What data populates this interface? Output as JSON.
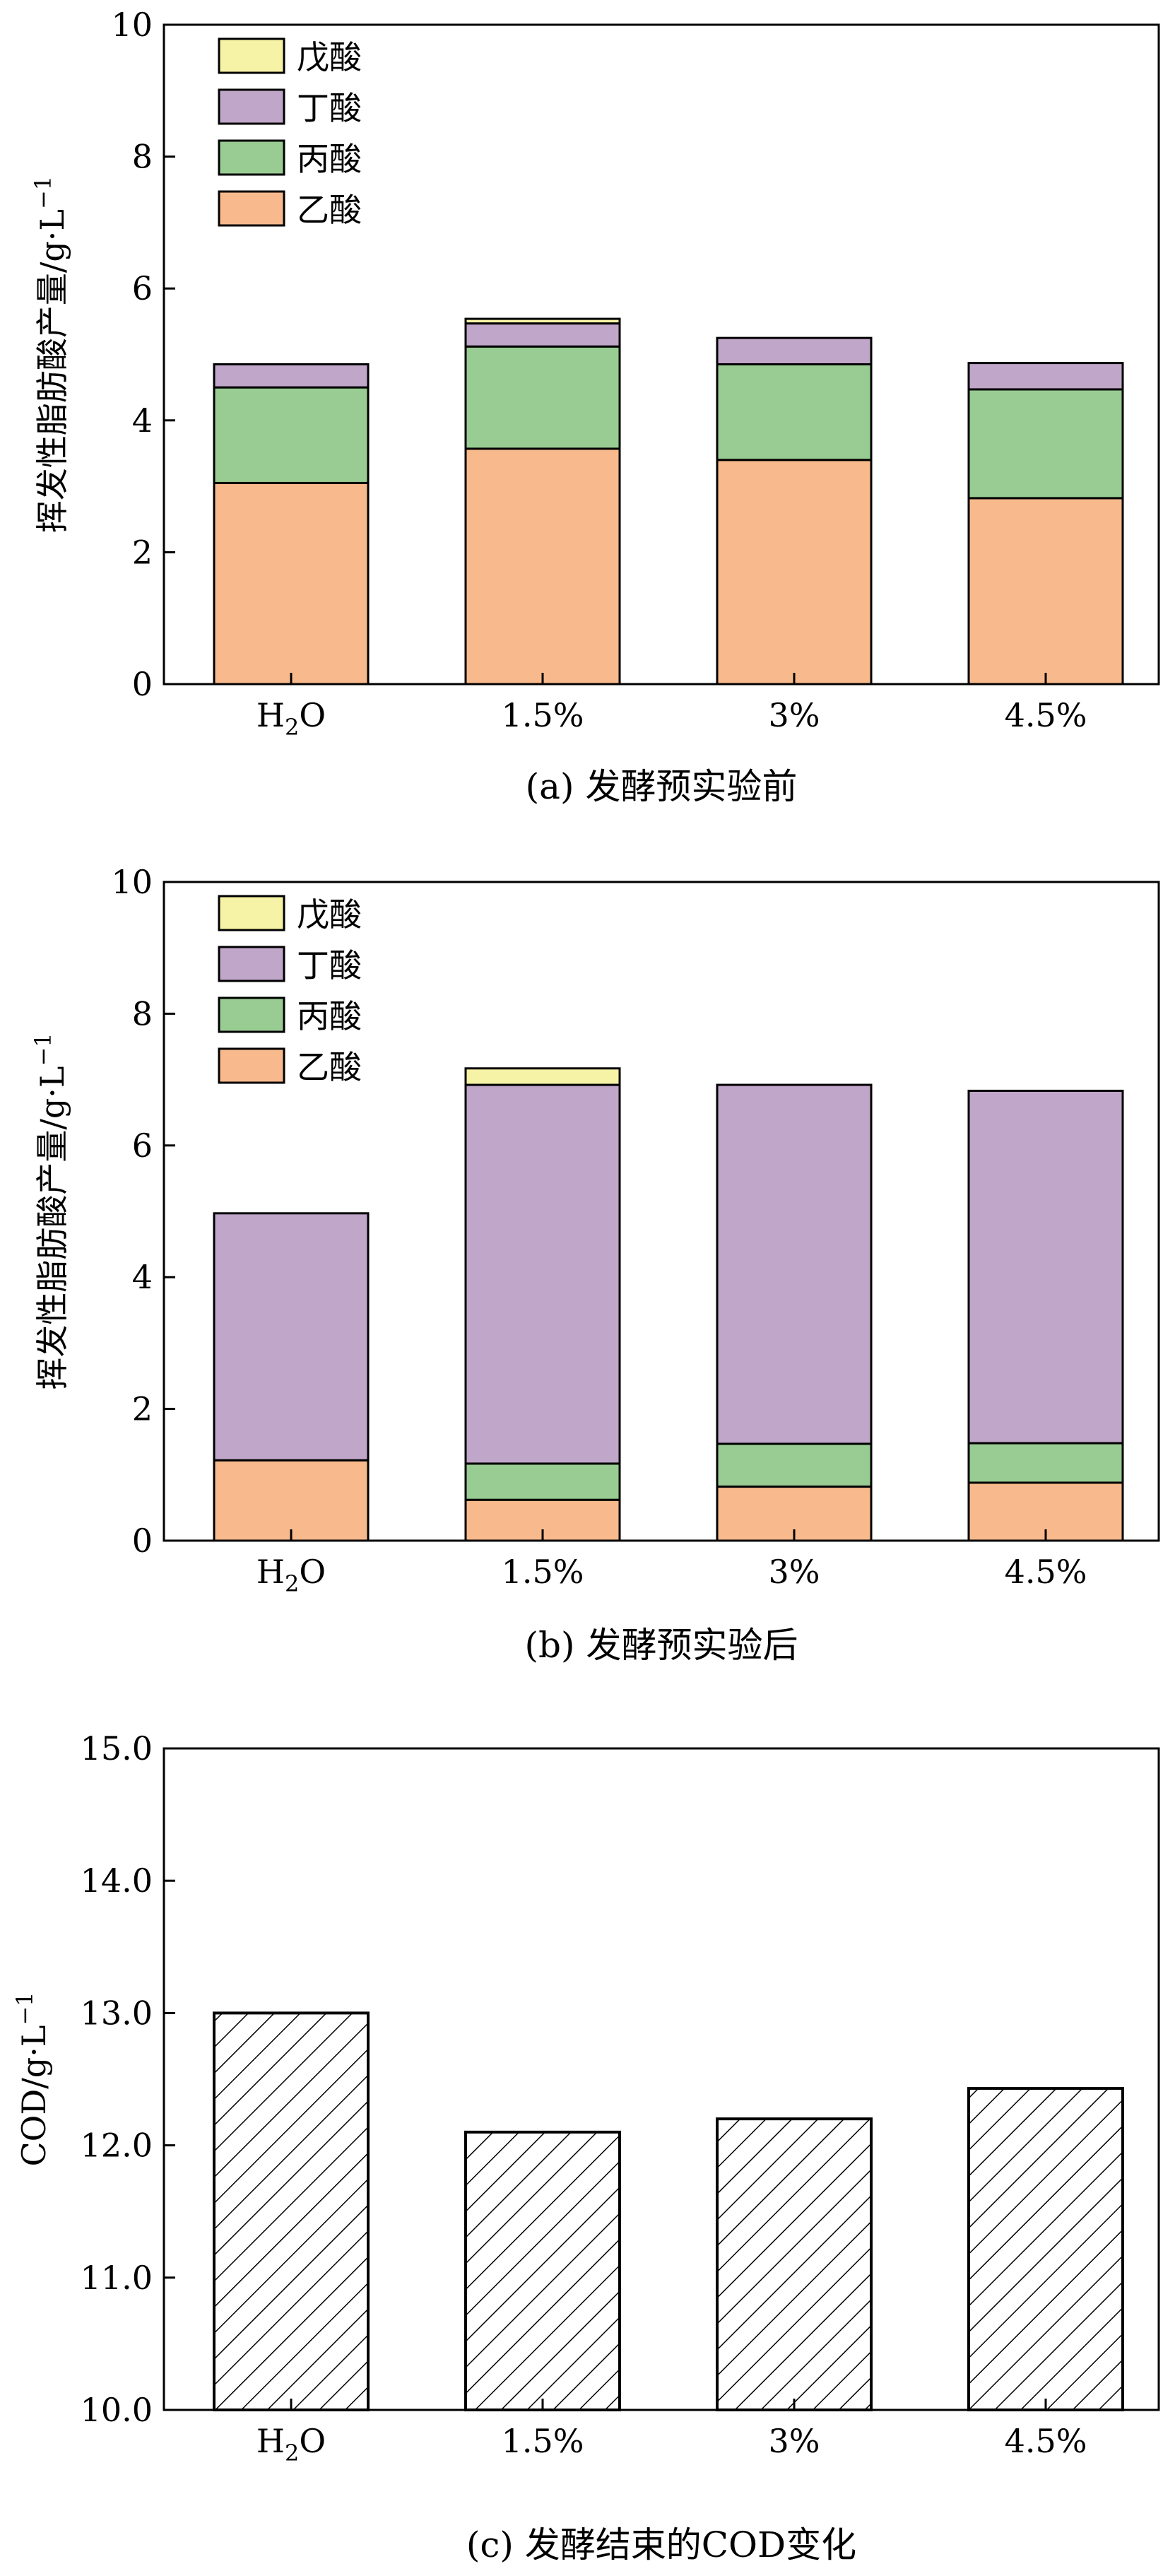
{
  "chart_data": [
    {
      "type": "bar",
      "stacked": true,
      "caption": "(a) 发酵预实验前",
      "ylabel": "挥发性脂肪酸产量/g·L",
      "ylabel_sup": "−1",
      "xlabel": "",
      "ylim": [
        0,
        10
      ],
      "yticks": [
        "0",
        "2",
        "4",
        "6",
        "8",
        "10"
      ],
      "categories": [
        "H2O",
        "1.5%",
        "3%",
        "4.5%"
      ],
      "legend_position": "top-left",
      "series": [
        {
          "name": "乙酸",
          "color": "#F8BA8C",
          "values": [
            3.05,
            3.57,
            3.4,
            2.82
          ]
        },
        {
          "name": "丙酸",
          "color": "#98CC92",
          "values": [
            1.45,
            1.55,
            1.45,
            1.65
          ]
        },
        {
          "name": "丁酸",
          "color": "#C0A6C8",
          "values": [
            0.35,
            0.35,
            0.4,
            0.4
          ]
        },
        {
          "name": "戊酸",
          "color": "#F7F3A6",
          "values": [
            0.0,
            0.07,
            0.0,
            0.0
          ]
        }
      ]
    },
    {
      "type": "bar",
      "stacked": true,
      "caption": "(b) 发酵预实验后",
      "ylabel": "挥发性脂肪酸产量/g·L",
      "ylabel_sup": "−1",
      "xlabel": "",
      "ylim": [
        0,
        10
      ],
      "yticks": [
        "0",
        "2",
        "4",
        "6",
        "8",
        "10"
      ],
      "categories": [
        "H2O",
        "1.5%",
        "3%",
        "4.5%"
      ],
      "legend_position": "top-left",
      "series": [
        {
          "name": "乙酸",
          "color": "#F8BA8C",
          "values": [
            1.22,
            0.62,
            0.82,
            0.88
          ]
        },
        {
          "name": "丙酸",
          "color": "#98CC92",
          "values": [
            0.0,
            0.55,
            0.65,
            0.6
          ]
        },
        {
          "name": "丁酸",
          "color": "#C0A6C8",
          "values": [
            3.75,
            5.75,
            5.45,
            5.35
          ]
        },
        {
          "name": "戊酸",
          "color": "#F7F3A6",
          "values": [
            0.0,
            0.25,
            0.0,
            0.0
          ]
        }
      ]
    },
    {
      "type": "bar",
      "hatched": true,
      "caption": "(c) 发酵结束的COD变化",
      "ylabel": "COD/g·L",
      "ylabel_sup": "−1",
      "xlabel": "",
      "ylim": [
        10,
        15
      ],
      "yticks": [
        "10.0",
        "11.0",
        "12.0",
        "13.0",
        "14.0",
        "15.0"
      ],
      "categories": [
        "H2O",
        "1.5%",
        "3%",
        "4.5%"
      ],
      "series": [
        {
          "values": [
            13.0,
            12.1,
            12.2,
            12.43
          ]
        }
      ]
    }
  ]
}
